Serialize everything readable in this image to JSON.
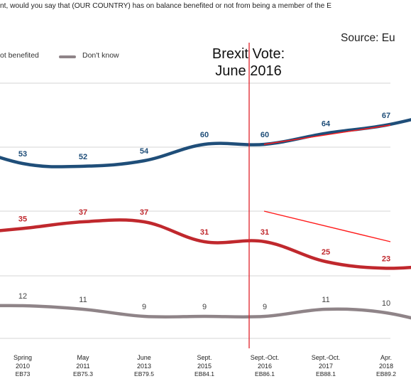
{
  "question": "nt, would you say that (OUR COUNTRY) has on balance benefited or not from being a member of the E",
  "source": "Source: Eu",
  "annotation": {
    "line1": "Brexit Vote:",
    "line2": "June 2016"
  },
  "legend": {
    "red_label": "ot benefited",
    "grey_label": "Don't know"
  },
  "colors": {
    "blue": "#1f4e79",
    "red": "#c0282d",
    "grey": "#8f8488",
    "vline": "#e0202a",
    "grid": "#d6d6d6",
    "overlay": "#ff1a1a"
  },
  "chart_data": {
    "type": "line",
    "x": [
      {
        "line1": "",
        "line2": "",
        "line3": ""
      },
      {
        "line1": "Spring",
        "line2": "2010",
        "line3": "EB73"
      },
      {
        "line1": "May",
        "line2": "2011",
        "line3": "EB75.3"
      },
      {
        "line1": "June",
        "line2": "2013",
        "line3": "EB79.5"
      },
      {
        "line1": "Sept.",
        "line2": "2015",
        "line3": "EB84.1"
      },
      {
        "line1": "Sept.-Oct.",
        "line2": "2016",
        "line3": "EB86.1"
      },
      {
        "line1": "Sept.-Oct.",
        "line2": "2017",
        "line3": "EB88.1"
      },
      {
        "line1": "Apr.",
        "line2": "2018",
        "line3": "EB89.2"
      },
      {
        "line1": "",
        "line2": "",
        "line3": ""
      }
    ],
    "series": [
      {
        "color": "blue",
        "values": [
          null,
          53,
          52,
          54,
          60,
          60,
          64,
          67,
          null
        ],
        "labels": [
          "",
          "53",
          "52",
          "54",
          "60",
          "60",
          "64",
          "67",
          ""
        ]
      },
      {
        "color": "red",
        "values": [
          null,
          35,
          37,
          37,
          31,
          31,
          25,
          23,
          null
        ],
        "labels": [
          "",
          "35",
          "37",
          "37",
          "31",
          "31",
          "25",
          "23",
          ""
        ]
      },
      {
        "color": "grey",
        "values": [
          null,
          12,
          11,
          9,
          9,
          9,
          11,
          10,
          null
        ],
        "labels": [
          "",
          "12",
          "11",
          "9",
          "9",
          "9",
          "11",
          "10",
          ""
        ]
      }
    ],
    "annotation_after_index": 4
  }
}
